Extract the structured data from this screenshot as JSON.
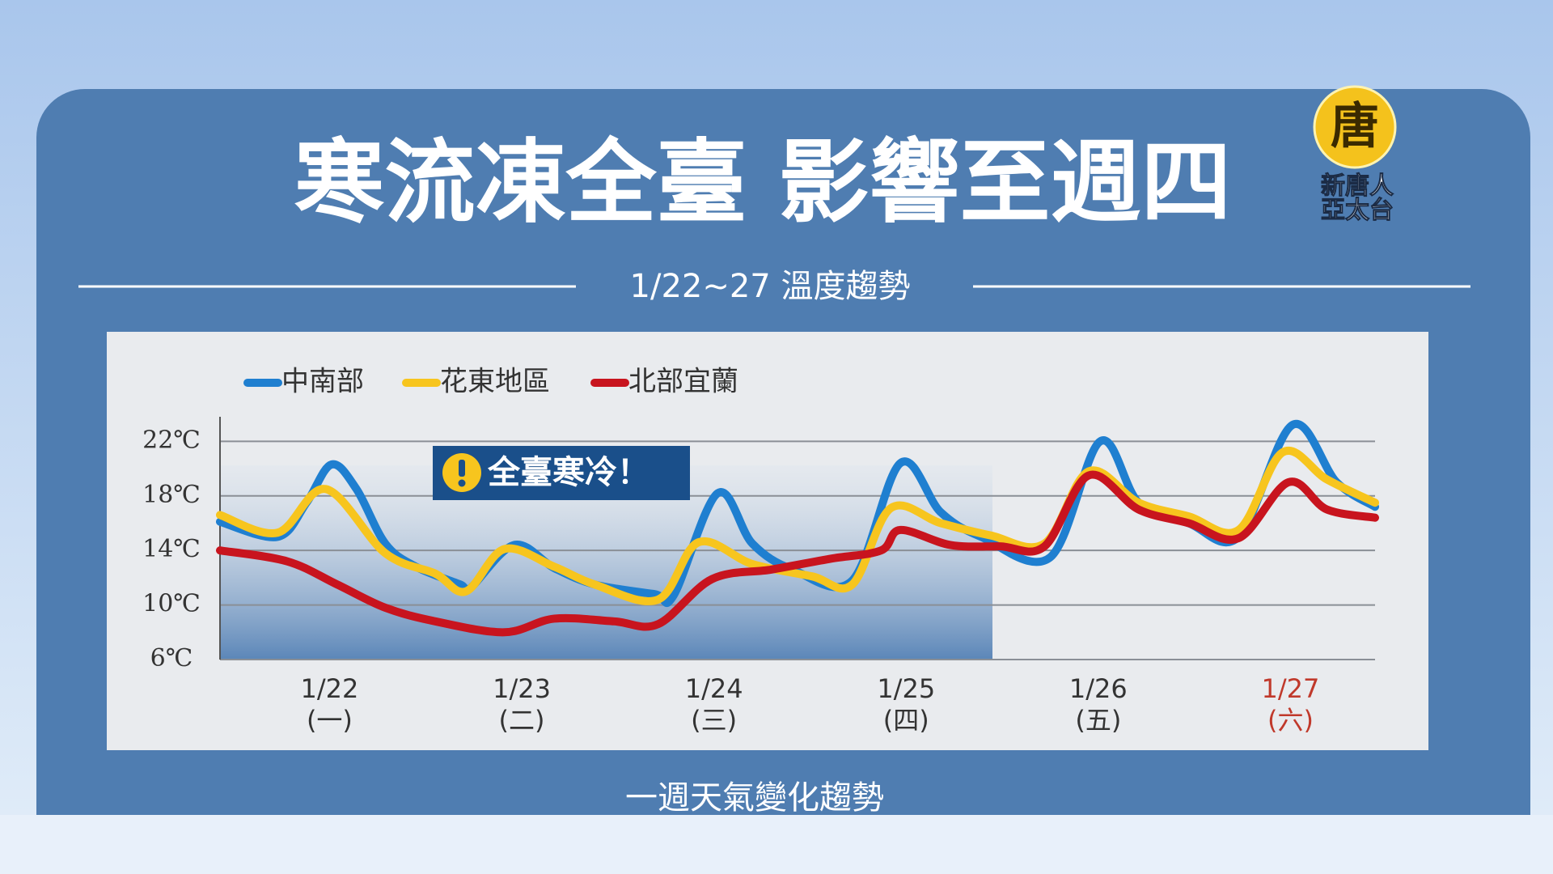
{
  "chart_data": {
    "type": "line",
    "title": "寒流凍全臺 影響至週四",
    "subtitle": "1/22~27 溫度趨勢",
    "annotation": "全臺寒冷！",
    "footer": "一週天氣變化趨勢",
    "logo": {
      "mark": "唐",
      "line1": "新唐人",
      "line2": "亞太台"
    },
    "xlim": [
      -0.57,
      5.44
    ],
    "xticks": [
      {
        "value": 0,
        "label": "1/22"
      },
      {
        "value": 1,
        "label": "1/23"
      },
      {
        "value": 2,
        "label": "1/24"
      },
      {
        "value": 3,
        "label": "1/25"
      },
      {
        "value": 4,
        "label": "1/26"
      },
      {
        "value": 5,
        "label": "1/27"
      }
    ],
    "weekdays": [
      "(一)",
      "(二)",
      "(三)",
      "(四)",
      "(五)",
      "(六)"
    ],
    "xtick_colors": [
      "#333333",
      "#333333",
      "#333333",
      "#333333",
      "#333333",
      "#c0392b"
    ],
    "ylim": [
      6,
      23.8
    ],
    "yticks": [
      {
        "value": 6,
        "label": "6℃"
      },
      {
        "value": 10,
        "label": "10℃"
      },
      {
        "value": 14,
        "label": "14℃"
      },
      {
        "value": 18,
        "label": "18℃"
      },
      {
        "value": 22,
        "label": "22℃"
      }
    ],
    "grid": true,
    "series": [
      {
        "name": "中南部",
        "color": "#1f7fd0",
        "x": [
          -0.57,
          -0.27,
          -0.12,
          0.01,
          0.14,
          0.29,
          0.45,
          0.68,
          0.73,
          0.96,
          1.17,
          1.38,
          1.69,
          1.79,
          2.02,
          2.2,
          2.41,
          2.72,
          2.97,
          3.18,
          3.39,
          3.75,
          4.01,
          4.21,
          4.47,
          4.73,
          5.01,
          5.24,
          5.44
        ],
        "values": [
          16.1,
          15.0,
          17.5,
          20.3,
          18.5,
          14.5,
          12.8,
          11.5,
          11.2,
          14.4,
          12.7,
          11.5,
          10.8,
          10.7,
          18.2,
          14.5,
          12.6,
          11.8,
          20.4,
          16.8,
          15.0,
          13.5,
          22.0,
          17.5,
          16.0,
          15.0,
          23.2,
          19.0,
          17.2
        ]
      },
      {
        "name": "花東地區",
        "color": "#f7c51e",
        "x": [
          -0.57,
          -0.27,
          -0.02,
          0.29,
          0.55,
          0.71,
          0.91,
          1.17,
          1.38,
          1.71,
          1.92,
          2.2,
          2.51,
          2.72,
          2.92,
          3.18,
          3.44,
          3.72,
          3.95,
          4.21,
          4.47,
          4.73,
          4.96,
          5.19,
          5.44
        ],
        "values": [
          16.6,
          15.3,
          18.5,
          13.8,
          12.3,
          11.0,
          14.1,
          12.8,
          11.5,
          10.4,
          14.6,
          13.0,
          12.1,
          11.5,
          17.1,
          16.0,
          15.1,
          14.5,
          19.8,
          17.5,
          16.5,
          15.5,
          21.2,
          19.2,
          17.5
        ]
      },
      {
        "name": "北部宜蘭",
        "color": "#c8141e",
        "x": [
          -0.57,
          -0.22,
          0.04,
          0.29,
          0.55,
          0.91,
          1.17,
          1.48,
          1.71,
          1.99,
          2.3,
          2.61,
          2.87,
          2.97,
          3.23,
          3.49,
          3.72,
          3.95,
          4.21,
          4.47,
          4.73,
          4.99,
          5.19,
          5.44
        ],
        "values": [
          14.0,
          13.2,
          11.5,
          9.8,
          8.8,
          8.0,
          9.0,
          8.8,
          8.6,
          11.9,
          12.6,
          13.4,
          14.0,
          15.5,
          14.4,
          14.3,
          14.3,
          19.5,
          17.0,
          16.0,
          14.9,
          19.0,
          17.0,
          16.4
        ]
      }
    ]
  }
}
